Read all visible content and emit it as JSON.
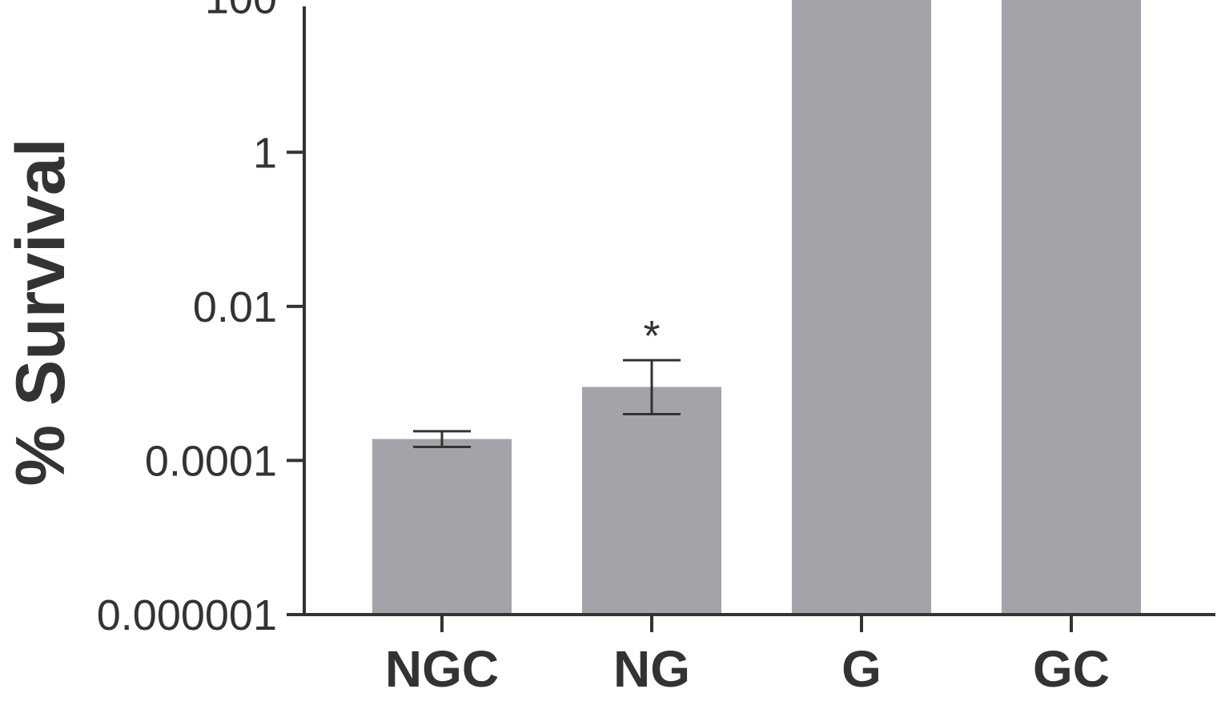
{
  "chart_data": {
    "type": "bar",
    "title": "",
    "xlabel": "",
    "ylabel": "% Survival",
    "yscale": "log",
    "ylim": [
      1e-06,
      1000
    ],
    "yticks": [
      1e-06,
      0.0001,
      0.01,
      1,
      100
    ],
    "ytick_labels": [
      "0.000001",
      "0.0001",
      "0.01",
      "1",
      "100"
    ],
    "categories": [
      "NGC",
      "NG",
      "G",
      "GC"
    ],
    "values": [
      0.00019,
      0.0009,
      115,
      115
    ],
    "error_low": [
      0.00015,
      0.0004,
      100,
      110
    ],
    "error_high": [
      0.00024,
      0.002,
      125,
      120
    ],
    "significance": [
      "",
      "*",
      "****",
      "****"
    ],
    "grid": false,
    "legend": "none"
  },
  "colors": {
    "bar": "#a5a3a9",
    "axis": "#333333",
    "text": "#333333"
  }
}
